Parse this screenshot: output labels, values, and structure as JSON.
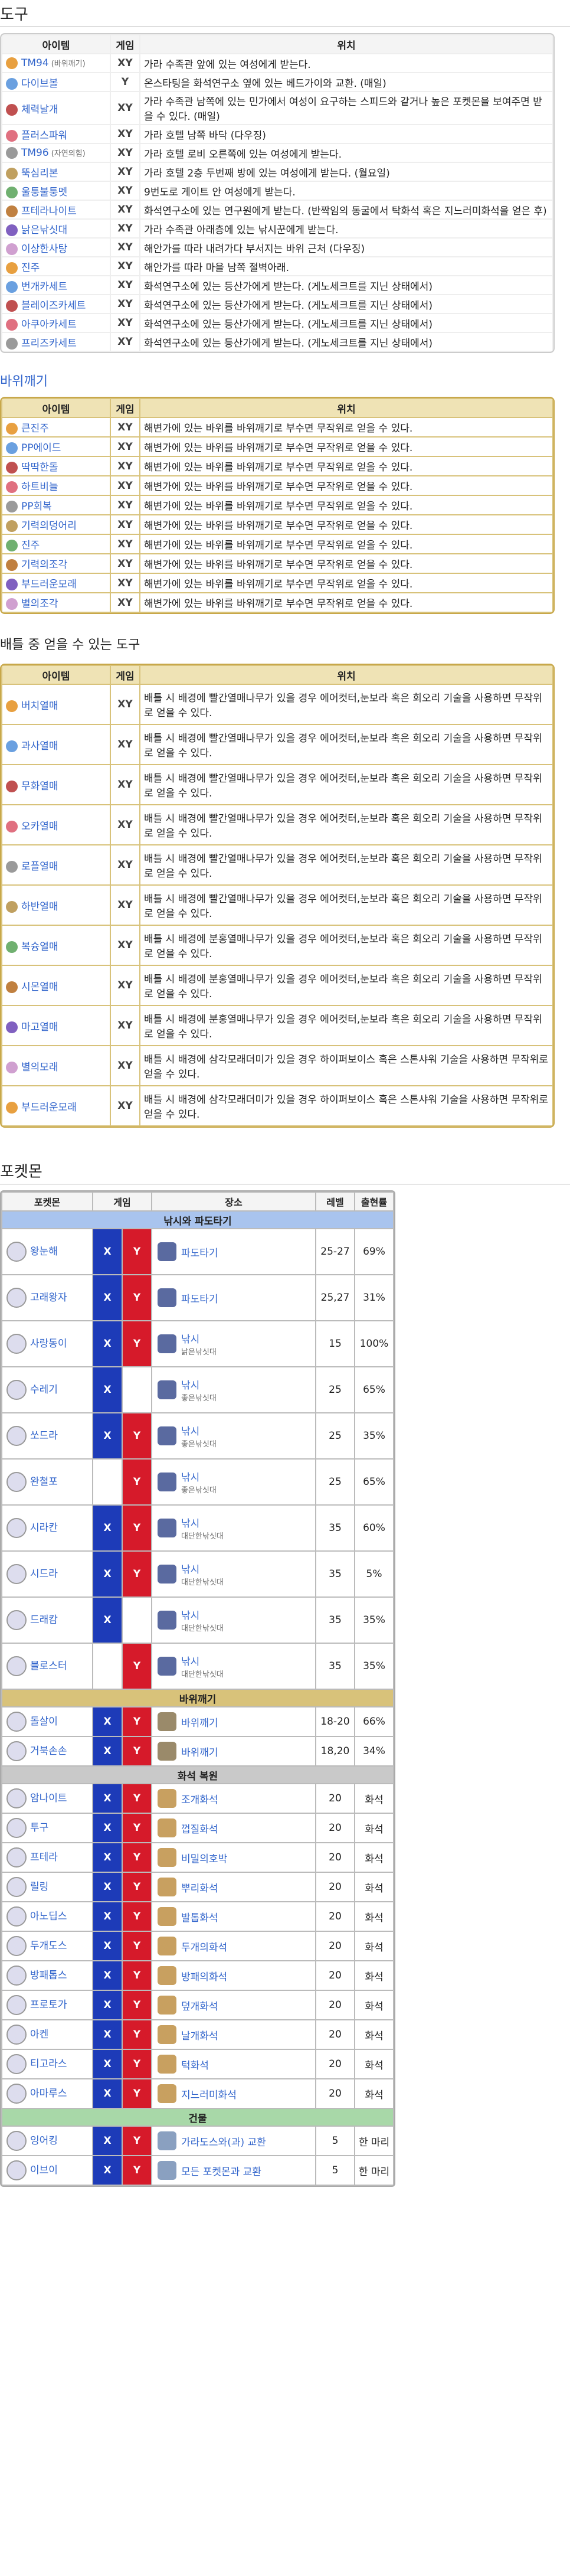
{
  "sections": {
    "items": "도구",
    "rocksmash": "바위깨기",
    "battle": "배틀 중 얻을 수 있는 도구",
    "pokemon": "포켓몬"
  },
  "table_headers": {
    "item": "아이템",
    "game": "게임",
    "location": "위치"
  },
  "items": [
    {
      "name": "TM94",
      "note": "(바위깨기)",
      "game": "XY",
      "loc": "가라 수족관 앞에 있는 여성에게 받는다."
    },
    {
      "name": "다이브볼",
      "game": "Y",
      "loc": "온스타팅을 화석연구소 옆에 있는 베드가이와 교환. (매일)"
    },
    {
      "name": "체력날개",
      "game": "XY",
      "loc": "가라 수족관 남쪽에 있는 민가에서 여성이 요구하는 스피드와 같거나 높은 포켓몬을 보여주면 받을 수 있다. (매일)"
    },
    {
      "name": "플러스파워",
      "game": "XY",
      "loc": "가라 호텔 남쪽 바닥 (다우징)"
    },
    {
      "name": "TM96",
      "note": "(자연의힘)",
      "game": "XY",
      "loc": "가라 호텔 로비 오른쪽에 있는 여성에게 받는다."
    },
    {
      "name": "뚝심리본",
      "game": "XY",
      "loc": "가라 호텔 2층 두번째 방에 있는 여성에게 받는다. (월요일)"
    },
    {
      "name": "울퉁불퉁멧",
      "game": "XY",
      "loc": "9번도로 게이트 안 여성에게 받는다."
    },
    {
      "name": "프테라나이트",
      "game": "XY",
      "loc": "화석연구소에 있는 연구원에게 받는다. (반짝임의 동굴에서 탁화석 혹은 지느러미화석을 얻은 후)"
    },
    {
      "name": "낡은낚싯대",
      "game": "XY",
      "loc": "가라 수족관 아래층에 있는 낚시꾼에게 받는다."
    },
    {
      "name": "이상한사탕",
      "game": "XY",
      "loc": "해안가를 따라 내려가다 부서지는 바위 근처 (다우징)"
    },
    {
      "name": "진주",
      "game": "XY",
      "loc": "해안가를 따라 마을 남쪽 절벽아래."
    },
    {
      "name": "번개카세트",
      "game": "XY",
      "loc": "화석연구소에 있는 등산가에게 받는다. (게노세크트를 지닌 상태에서)"
    },
    {
      "name": "블레이즈카세트",
      "game": "XY",
      "loc": "화석연구소에 있는 등산가에게 받는다. (게노세크트를 지닌 상태에서)"
    },
    {
      "name": "아쿠아카세트",
      "game": "XY",
      "loc": "화석연구소에 있는 등산가에게 받는다. (게노세크트를 지닌 상태에서)"
    },
    {
      "name": "프리즈카세트",
      "game": "XY",
      "loc": "화석연구소에 있는 등산가에게 받는다. (게노세크트를 지닌 상태에서)"
    }
  ],
  "rock_items": [
    {
      "name": "큰진주",
      "game": "XY",
      "loc": "해변가에 있는 바위를 바위깨기로 부수면 무작위로 얻을 수 있다."
    },
    {
      "name": "PP에이드",
      "game": "XY",
      "loc": "해변가에 있는 바위를 바위깨기로 부수면 무작위로 얻을 수 있다."
    },
    {
      "name": "딱딱한돌",
      "game": "XY",
      "loc": "해변가에 있는 바위를 바위깨기로 부수면 무작위로 얻을 수 있다."
    },
    {
      "name": "하트비늘",
      "game": "XY",
      "loc": "해변가에 있는 바위를 바위깨기로 부수면 무작위로 얻을 수 있다."
    },
    {
      "name": "PP회복",
      "game": "XY",
      "loc": "해변가에 있는 바위를 바위깨기로 부수면 무작위로 얻을 수 있다."
    },
    {
      "name": "기력의덩어리",
      "game": "XY",
      "loc": "해변가에 있는 바위를 바위깨기로 부수면 무작위로 얻을 수 있다."
    },
    {
      "name": "진주",
      "game": "XY",
      "loc": "해변가에 있는 바위를 바위깨기로 부수면 무작위로 얻을 수 있다."
    },
    {
      "name": "기력의조각",
      "game": "XY",
      "loc": "해변가에 있는 바위를 바위깨기로 부수면 무작위로 얻을 수 있다."
    },
    {
      "name": "부드러운모래",
      "game": "XY",
      "loc": "해변가에 있는 바위를 바위깨기로 부수면 무작위로 얻을 수 있다."
    },
    {
      "name": "별의조각",
      "game": "XY",
      "loc": "해변가에 있는 바위를 바위깨기로 부수면 무작위로 얻을 수 있다."
    }
  ],
  "battle_items": [
    {
      "name": "버치열매",
      "game": "XY",
      "loc": "배틀 시 배경에 빨간열매나무가 있을 경우 에어컷터,눈보라 혹은 회오리 기술을 사용하면 무작위로 얻을 수 있다."
    },
    {
      "name": "과사열매",
      "game": "XY",
      "loc": "배틀 시 배경에 빨간열매나무가 있을 경우 에어컷터,눈보라 혹은 회오리 기술을 사용하면 무작위로 얻을 수 있다."
    },
    {
      "name": "무화열매",
      "game": "XY",
      "loc": "배틀 시 배경에 빨간열매나무가 있을 경우 에어컷터,눈보라 혹은 회오리 기술을 사용하면 무작위로 얻을 수 있다."
    },
    {
      "name": "오카열매",
      "game": "XY",
      "loc": "배틀 시 배경에 빨간열매나무가 있을 경우 에어컷터,눈보라 혹은 회오리 기술을 사용하면 무작위로 얻을 수 있다."
    },
    {
      "name": "로플열매",
      "game": "XY",
      "loc": "배틀 시 배경에 빨간열매나무가 있을 경우 에어컷터,눈보라 혹은 회오리 기술을 사용하면 무작위로 얻을 수 있다."
    },
    {
      "name": "하반열매",
      "game": "XY",
      "loc": "배틀 시 배경에 빨간열매나무가 있을 경우 에어컷터,눈보라 혹은 회오리 기술을 사용하면 무작위로 얻을 수 있다."
    },
    {
      "name": "복슝열매",
      "game": "XY",
      "loc": "배틀 시 배경에 분홍열매나무가 있을 경우 에어컷터,눈보라 혹은 회오리 기술을 사용하면 무작위로 얻을 수 있다."
    },
    {
      "name": "시몬열매",
      "game": "XY",
      "loc": "배틀 시 배경에 분홍열매나무가 있을 경우 에어컷터,눈보라 혹은 회오리 기술을 사용하면 무작위로 얻을 수 있다."
    },
    {
      "name": "마고열매",
      "game": "XY",
      "loc": "배틀 시 배경에 분홍열매나무가 있을 경우 에어컷터,눈보라 혹은 회오리 기술을 사용하면 무작위로 얻을 수 있다."
    },
    {
      "name": "별의모래",
      "game": "XY",
      "loc": "배틀 시 배경에 삼각모래더미가 있을 경우 하이퍼보이스 혹은 스톤샤워 기술을 사용하면 무작위로 얻을 수 있다."
    },
    {
      "name": "부드러운모래",
      "game": "XY",
      "loc": "배틀 시 배경에 삼각모래더미가 있을 경우 하이퍼보이스 혹은 스톤샤워 기술을 사용하면 무작위로 얻을 수 있다."
    }
  ],
  "poke_headers": {
    "pokemon": "포켓몬",
    "game": "게임",
    "place": "장소",
    "level": "레벨",
    "rate": "출현률"
  },
  "poke_groups": [
    {
      "title": "낚시와 파도타기",
      "color": "#a9c4ee",
      "rows": [
        {
          "name": "왕눈해",
          "x": true,
          "y": true,
          "place": "파도타기",
          "sub": "",
          "level": "25-27",
          "rate": "69%"
        },
        {
          "name": "고래왕자",
          "x": true,
          "y": true,
          "place": "파도타기",
          "sub": "",
          "level": "25,27",
          "rate": "31%"
        },
        {
          "name": "사랑동이",
          "x": true,
          "y": true,
          "place": "낚시",
          "sub": "낡은낚싯대",
          "level": "15",
          "rate": "100%"
        },
        {
          "name": "수레기",
          "x": true,
          "y": false,
          "place": "낚시",
          "sub": "좋은낚싯대",
          "level": "25",
          "rate": "65%"
        },
        {
          "name": "쏘드라",
          "x": true,
          "y": true,
          "place": "낚시",
          "sub": "좋은낚싯대",
          "level": "25",
          "rate": "35%"
        },
        {
          "name": "완철포",
          "x": false,
          "y": true,
          "place": "낚시",
          "sub": "좋은낚싯대",
          "level": "25",
          "rate": "65%"
        },
        {
          "name": "시라칸",
          "x": true,
          "y": true,
          "place": "낚시",
          "sub": "대단한낚싯대",
          "level": "35",
          "rate": "60%"
        },
        {
          "name": "시드라",
          "x": true,
          "y": true,
          "place": "낚시",
          "sub": "대단한낚싯대",
          "level": "35",
          "rate": "5%"
        },
        {
          "name": "드래캄",
          "x": true,
          "y": false,
          "place": "낚시",
          "sub": "대단한낚싯대",
          "level": "35",
          "rate": "35%"
        },
        {
          "name": "블로스터",
          "x": false,
          "y": true,
          "place": "낚시",
          "sub": "대단한낚싯대",
          "level": "35",
          "rate": "35%"
        }
      ]
    },
    {
      "title": "바위깨기",
      "color": "#d8c27a",
      "rows": [
        {
          "name": "돌살이",
          "x": true,
          "y": true,
          "place": "바위깨기",
          "sub": "",
          "level": "18-20",
          "rate": "66%"
        },
        {
          "name": "거북손손",
          "x": true,
          "y": true,
          "place": "바위깨기",
          "sub": "",
          "level": "18,20",
          "rate": "34%"
        }
      ]
    },
    {
      "title": "화석 복원",
      "color": "#c9c9c9",
      "rows": [
        {
          "name": "암나이트",
          "x": true,
          "y": true,
          "place": "조개화석",
          "sub": "",
          "level": "20",
          "rate": "화석"
        },
        {
          "name": "투구",
          "x": true,
          "y": true,
          "place": "껍질화석",
          "sub": "",
          "level": "20",
          "rate": "화석"
        },
        {
          "name": "프테라",
          "x": true,
          "y": true,
          "place": "비밀의호박",
          "sub": "",
          "level": "20",
          "rate": "화석"
        },
        {
          "name": "릴링",
          "x": true,
          "y": true,
          "place": "뿌리화석",
          "sub": "",
          "level": "20",
          "rate": "화석"
        },
        {
          "name": "아노딥스",
          "x": true,
          "y": true,
          "place": "발톱화석",
          "sub": "",
          "level": "20",
          "rate": "화석"
        },
        {
          "name": "두개도스",
          "x": true,
          "y": true,
          "place": "두개의화석",
          "sub": "",
          "level": "20",
          "rate": "화석"
        },
        {
          "name": "방패톱스",
          "x": true,
          "y": true,
          "place": "방패의화석",
          "sub": "",
          "level": "20",
          "rate": "화석"
        },
        {
          "name": "프로토가",
          "x": true,
          "y": true,
          "place": "덮개화석",
          "sub": "",
          "level": "20",
          "rate": "화석"
        },
        {
          "name": "아켄",
          "x": true,
          "y": true,
          "place": "날개화석",
          "sub": "",
          "level": "20",
          "rate": "화석"
        },
        {
          "name": "티고라스",
          "x": true,
          "y": true,
          "place": "턱화석",
          "sub": "",
          "level": "20",
          "rate": "화석"
        },
        {
          "name": "아마루스",
          "x": true,
          "y": true,
          "place": "지느러미화석",
          "sub": "",
          "level": "20",
          "rate": "화석"
        }
      ]
    },
    {
      "title": "건물",
      "color": "#a8d8a8",
      "rows": [
        {
          "name": "잉어킹",
          "x": true,
          "y": true,
          "place": "가라도스와(과) 교환",
          "sub": "",
          "level": "5",
          "rate": "한 마리"
        },
        {
          "name": "이브이",
          "x": true,
          "y": true,
          "place": "모든 포켓몬과 교환",
          "sub": "",
          "level": "5",
          "rate": "한 마리"
        }
      ]
    }
  ],
  "colors": {
    "link": "#3366cc",
    "x": "#1d3bb8",
    "y": "#d61a2a",
    "gold": "#d8c27a"
  }
}
